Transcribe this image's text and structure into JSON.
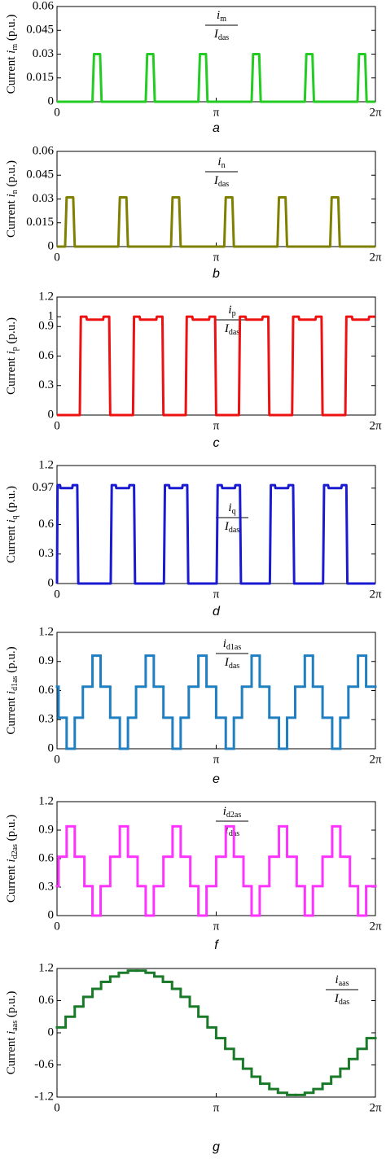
{
  "chart_data": [
    {
      "type": "line",
      "caption": "a",
      "color": "#22cc22",
      "ylabel": {
        "text": "Current",
        "var": "i",
        "sub": "m",
        "unit": "(p.u.)"
      },
      "annotation": {
        "num": "i",
        "num_sub": "m",
        "den": "I",
        "den_sub": "das"
      },
      "xlim": [
        0,
        6.2832
      ],
      "xticks": [
        0,
        {
          "value": 3.1416,
          "label": "π"
        },
        {
          "value": 6.2832,
          "label": "2π"
        }
      ],
      "ylim": [
        0,
        0.06
      ],
      "yticks": [
        0,
        0.015,
        0.03,
        0.045,
        0.06
      ],
      "x": [
        0,
        0.7,
        0.73,
        0.85,
        0.88,
        1.75,
        1.78,
        1.9,
        1.93,
        2.79,
        2.82,
        2.94,
        2.97,
        3.84,
        3.87,
        3.99,
        4.02,
        4.89,
        4.92,
        5.04,
        5.07,
        5.93,
        5.96,
        6.08,
        6.11,
        6.28
      ],
      "values": [
        0,
        0,
        0.03,
        0.03,
        0,
        0,
        0.03,
        0.03,
        0,
        0,
        0.03,
        0.03,
        0,
        0,
        0.03,
        0.03,
        0,
        0,
        0.03,
        0.03,
        0,
        0,
        0.03,
        0.03,
        0,
        0
      ]
    },
    {
      "type": "line",
      "caption": "b",
      "color": "#808000",
      "ylabel": {
        "text": "Current",
        "var": "i",
        "sub": "n",
        "unit": "(p.u.)"
      },
      "annotation": {
        "num": "i",
        "num_sub": "n",
        "den": "I",
        "den_sub": "das"
      },
      "xlim": [
        0,
        6.2832
      ],
      "xticks": [
        0,
        {
          "value": 3.1416,
          "label": "π"
        },
        {
          "value": 6.2832,
          "label": "2π"
        }
      ],
      "ylim": [
        0,
        0.06
      ],
      "yticks": [
        0,
        0.015,
        0.03,
        0.045,
        0.06
      ],
      "x": [
        0,
        0.16,
        0.19,
        0.32,
        0.35,
        1.21,
        1.24,
        1.37,
        1.4,
        2.25,
        2.28,
        2.41,
        2.44,
        3.3,
        3.33,
        3.46,
        3.49,
        4.35,
        4.38,
        4.51,
        4.54,
        5.39,
        5.42,
        5.55,
        5.58,
        6.28
      ],
      "values": [
        0,
        0,
        0.031,
        0.031,
        0,
        0,
        0.031,
        0.031,
        0,
        0,
        0.031,
        0.031,
        0,
        0,
        0.031,
        0.031,
        0,
        0,
        0.031,
        0.031,
        0,
        0,
        0.031,
        0.031,
        0,
        0
      ]
    },
    {
      "type": "line",
      "caption": "c",
      "color": "#ee1111",
      "ylabel": {
        "text": "Current",
        "var": "i",
        "sub": "p",
        "unit": "(p.u.)"
      },
      "annotation": {
        "num": "i",
        "num_sub": "p",
        "den": "I",
        "den_sub": "das"
      },
      "xlim": [
        0,
        6.2832
      ],
      "xticks": [
        0,
        {
          "value": 3.1416,
          "label": "π"
        },
        {
          "value": 6.2832,
          "label": "2π"
        }
      ],
      "ylim": [
        0,
        1.2
      ],
      "yticks": [
        0,
        0.3,
        0.6,
        0.9,
        1,
        1.2
      ],
      "x": [
        0,
        0.45,
        0.47,
        0.58,
        0.59,
        0.91,
        0.92,
        1.03,
        1.05,
        1.5,
        1.52,
        1.63,
        1.64,
        1.96,
        1.97,
        2.08,
        2.1,
        2.54,
        2.56,
        2.67,
        2.68,
        3.0,
        3.01,
        3.12,
        3.14,
        3.59,
        3.61,
        3.72,
        3.73,
        4.05,
        4.06,
        4.17,
        4.19,
        4.64,
        4.66,
        4.77,
        4.78,
        5.1,
        5.11,
        5.22,
        5.24,
        5.69,
        5.71,
        5.82,
        5.83,
        6.15,
        6.16,
        6.28
      ],
      "values": [
        0,
        0,
        1,
        1,
        0.97,
        0.97,
        1,
        1,
        0,
        0,
        1,
        1,
        0.97,
        0.97,
        1,
        1,
        0,
        0,
        1,
        1,
        0.97,
        0.97,
        1,
        1,
        0,
        0,
        1,
        1,
        0.97,
        0.97,
        1,
        1,
        0,
        0,
        1,
        1,
        0.97,
        0.97,
        1,
        1,
        0,
        0,
        1,
        1,
        0.97,
        0.97,
        1,
        1
      ]
    },
    {
      "type": "line",
      "caption": "d",
      "color": "#1a1ad0",
      "ylabel": {
        "text": "Current",
        "var": "i",
        "sub": "q",
        "unit": "(p.u.)"
      },
      "annotation": {
        "num": "i",
        "num_sub": "q",
        "den": "I",
        "den_sub": "das"
      },
      "xlim": [
        0,
        6.2832
      ],
      "xticks": [
        0,
        {
          "value": 3.1416,
          "label": "π"
        },
        {
          "value": 6.2832,
          "label": "2π"
        }
      ],
      "ylim": [
        0,
        1.2
      ],
      "yticks": [
        0,
        0.3,
        0.6,
        0.97,
        1.2
      ],
      "x": [
        0,
        0.01,
        0.06,
        0.07,
        0.3,
        0.31,
        0.4,
        0.42,
        1.06,
        1.08,
        1.16,
        1.17,
        1.42,
        1.43,
        1.52,
        1.54,
        2.11,
        2.13,
        2.21,
        2.22,
        2.47,
        2.48,
        2.57,
        2.59,
        3.15,
        3.17,
        3.25,
        3.26,
        3.51,
        3.52,
        3.61,
        3.63,
        4.2,
        4.22,
        4.3,
        4.31,
        4.56,
        4.57,
        4.66,
        4.68,
        5.25,
        5.27,
        5.35,
        5.36,
        5.61,
        5.62,
        5.71,
        5.73,
        6.28
      ],
      "values": [
        0,
        1,
        1,
        0.97,
        0.97,
        1,
        1,
        0,
        0,
        1,
        1,
        0.97,
        0.97,
        1,
        1,
        0,
        0,
        1,
        1,
        0.97,
        0.97,
        1,
        1,
        0,
        0,
        1,
        1,
        0.97,
        0.97,
        1,
        1,
        0,
        0,
        1,
        1,
        0.97,
        0.97,
        1,
        1,
        0,
        0,
        1,
        1,
        0.97,
        0.97,
        1,
        1,
        0,
        0
      ]
    },
    {
      "type": "step",
      "caption": "e",
      "color": "#1f7fc0",
      "ylabel": {
        "text": "Current",
        "var": "i",
        "sub": "d1as",
        "unit": "(p.u.)"
      },
      "annotation": {
        "num": "i",
        "num_sub": "d1as",
        "den": "I",
        "den_sub": "das"
      },
      "xlim": [
        0,
        6.2832
      ],
      "xticks": [
        0,
        {
          "value": 3.1416,
          "label": "π"
        },
        {
          "value": 6.2832,
          "label": "2π"
        }
      ],
      "ylim": [
        0,
        1.2
      ],
      "yticks": [
        0,
        0.3,
        0.6,
        0.9,
        1.2
      ],
      "x": [
        0,
        0.03,
        0.19,
        0.35,
        0.51,
        0.7,
        0.86,
        1.05,
        1.24,
        1.4,
        1.56,
        1.75,
        1.91,
        2.1,
        2.28,
        2.44,
        2.6,
        2.79,
        2.95,
        3.14,
        3.33,
        3.49,
        3.65,
        3.84,
        4.0,
        4.19,
        4.38,
        4.54,
        4.7,
        4.89,
        5.05,
        5.24,
        5.43,
        5.59,
        5.75,
        5.94,
        6.1
      ],
      "values": [
        0.64,
        0.32,
        0,
        0.32,
        0.64,
        0.96,
        0.64,
        0.32,
        0,
        0.32,
        0.64,
        0.96,
        0.64,
        0.32,
        0,
        0.32,
        0.64,
        0.96,
        0.64,
        0.32,
        0,
        0.32,
        0.64,
        0.96,
        0.64,
        0.32,
        0,
        0.32,
        0.64,
        0.96,
        0.64,
        0.32,
        0,
        0.32,
        0.64,
        0.96,
        0.64
      ]
    },
    {
      "type": "step",
      "caption": "f",
      "color": "#ff33ff",
      "ylabel": {
        "text": "Current",
        "var": "i",
        "sub": "d2as",
        "unit": "(p.u.)"
      },
      "annotation": {
        "num": "i",
        "num_sub": "d2as",
        "den": "I",
        "den_sub": "das"
      },
      "xlim": [
        0,
        6.2832
      ],
      "xticks": [
        0,
        {
          "value": 3.1416,
          "label": "π"
        },
        {
          "value": 6.2832,
          "label": "2π"
        }
      ],
      "ylim": [
        0,
        1.2
      ],
      "yticks": [
        0,
        0.3,
        0.6,
        0.9,
        1.2
      ],
      "x": [
        0,
        0.03,
        0.19,
        0.35,
        0.54,
        0.7,
        0.86,
        1.05,
        1.24,
        1.4,
        1.59,
        1.75,
        1.91,
        2.1,
        2.28,
        2.44,
        2.63,
        2.79,
        2.95,
        3.14,
        3.33,
        3.49,
        3.68,
        3.84,
        4.0,
        4.19,
        4.38,
        4.54,
        4.73,
        4.89,
        5.05,
        5.24,
        5.43,
        5.59,
        5.78,
        5.94,
        6.1
      ],
      "values": [
        0.31,
        0.62,
        0.94,
        0.62,
        0.31,
        0,
        0.31,
        0.62,
        0.94,
        0.62,
        0.31,
        0,
        0.31,
        0.62,
        0.94,
        0.62,
        0.31,
        0,
        0.31,
        0.62,
        0.94,
        0.62,
        0.31,
        0,
        0.31,
        0.62,
        0.94,
        0.62,
        0.31,
        0,
        0.31,
        0.62,
        0.94,
        0.62,
        0.31,
        0,
        0.31
      ]
    },
    {
      "type": "step",
      "caption": "g",
      "color": "#1a7a2a",
      "ylabel": {
        "text": "Current",
        "var": "i",
        "sub": "aas",
        "unit": "(p.u.)"
      },
      "annotation": {
        "num": "i",
        "num_sub": "aas",
        "den": "I",
        "den_sub": "das"
      },
      "xlim": [
        0,
        6.2832
      ],
      "xticks": [
        0,
        {
          "value": 3.1416,
          "label": "π"
        },
        {
          "value": 6.2832,
          "label": "2π"
        }
      ],
      "ylim": [
        -1.2,
        1.2
      ],
      "yticks": [
        -1.2,
        -0.6,
        0,
        0.6,
        1.2
      ],
      "x": [
        0,
        0.17,
        0.35,
        0.52,
        0.7,
        0.87,
        1.05,
        1.22,
        1.4,
        1.57,
        1.75,
        1.92,
        2.09,
        2.27,
        2.44,
        2.62,
        2.79,
        2.97,
        3.14,
        3.32,
        3.49,
        3.67,
        3.84,
        4.01,
        4.19,
        4.36,
        4.54,
        4.71,
        4.89,
        5.06,
        5.24,
        5.41,
        5.59,
        5.76,
        5.93,
        6.11
      ],
      "values": [
        0.1,
        0.3,
        0.49,
        0.67,
        0.82,
        0.95,
        1.05,
        1.12,
        1.16,
        1.16,
        1.12,
        1.05,
        0.95,
        0.82,
        0.67,
        0.49,
        0.3,
        0.1,
        -0.1,
        -0.3,
        -0.49,
        -0.67,
        -0.82,
        -0.95,
        -1.05,
        -1.12,
        -1.16,
        -1.16,
        -1.12,
        -1.05,
        -0.95,
        -0.82,
        -0.67,
        -0.49,
        -0.3,
        -0.1
      ]
    }
  ]
}
